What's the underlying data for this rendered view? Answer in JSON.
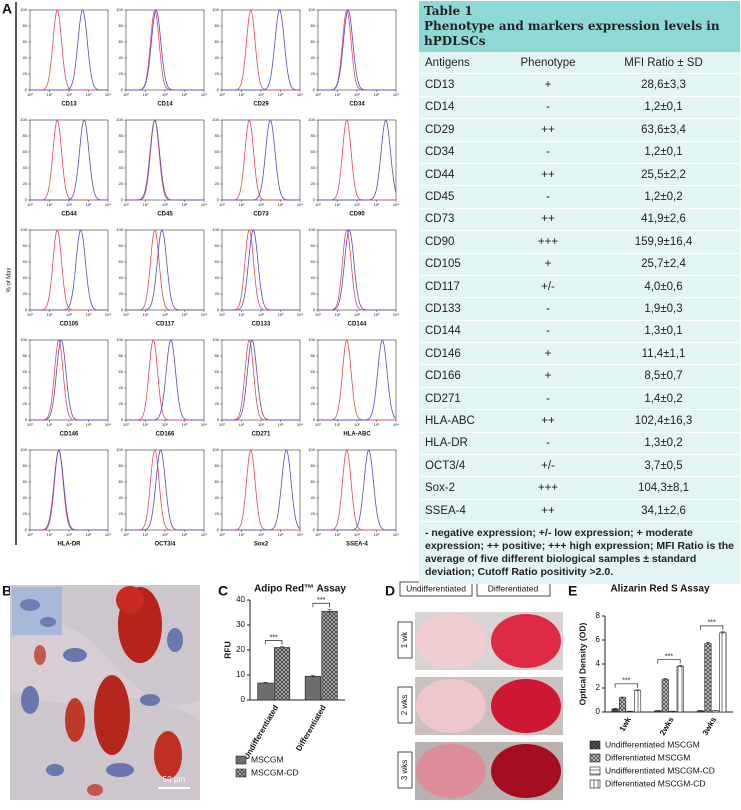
{
  "panel_labels": {
    "a": "A",
    "b": "B",
    "c": "C",
    "d": "D",
    "e": "E"
  },
  "flow": {
    "ylabel": "% of Max",
    "xlim": [
      1,
      10000
    ],
    "xticks": [
      {
        "value": 1,
        "label": "10⁰"
      },
      {
        "value": 10,
        "label": "10¹"
      },
      {
        "value": 100,
        "label": "10²"
      },
      {
        "value": 1000,
        "label": "10³"
      },
      {
        "value": 10000,
        "label": "10⁴"
      }
    ],
    "ylim": [
      0,
      100
    ],
    "yticks": [
      0,
      20,
      40,
      60,
      80,
      100
    ],
    "control_color": "#e8474f",
    "stain_color": "#4b4bd6",
    "histograms": [
      {
        "label": "CD13",
        "control_peak": 25,
        "stain_peak": 500
      },
      {
        "label": "CD14",
        "control_peak": 30,
        "stain_peak": 35
      },
      {
        "label": "CD29",
        "control_peak": 30,
        "stain_peak": 900
      },
      {
        "label": "CD34",
        "control_peak": 30,
        "stain_peak": 35
      },
      {
        "label": "CD44",
        "control_peak": 25,
        "stain_peak": 600
      },
      {
        "label": "CD45",
        "control_peak": 30,
        "stain_peak": 30
      },
      {
        "label": "CD73",
        "control_peak": 25,
        "stain_peak": 300
      },
      {
        "label": "CD90",
        "control_peak": 30,
        "stain_peak": 3000
      },
      {
        "label": "CD105",
        "control_peak": 25,
        "stain_peak": 400
      },
      {
        "label": "CD117",
        "control_peak": 30,
        "stain_peak": 70
      },
      {
        "label": "CD133",
        "control_peak": 25,
        "stain_peak": 40
      },
      {
        "label": "CD144",
        "control_peak": 30,
        "stain_peak": 40
      },
      {
        "label": "CD146",
        "control_peak": 30,
        "stain_peak": 40
      },
      {
        "label": "CD166",
        "control_peak": 25,
        "stain_peak": 200
      },
      {
        "label": "CD271",
        "control_peak": 25,
        "stain_peak": 35
      },
      {
        "label": "HLA-ABC",
        "control_peak": 30,
        "stain_peak": 2000
      },
      {
        "label": "HLA-DR",
        "control_peak": 30,
        "stain_peak": 30
      },
      {
        "label": "OCT3/4",
        "control_peak": 30,
        "stain_peak": 60
      },
      {
        "label": "Sox2",
        "control_peak": 30,
        "stain_peak": 2000
      },
      {
        "label": "SSEA-4",
        "control_peak": 30,
        "stain_peak": 400
      }
    ]
  },
  "table": {
    "title": "Table 1",
    "subtitle": "Phenotype and markers expression levels in hPDLSCs",
    "columns": [
      "Antigens",
      "Phenotype",
      "MFI Ratio ± SD"
    ],
    "rows": [
      [
        "CD13",
        "+",
        "28,6±3,3"
      ],
      [
        "CD14",
        "-",
        "1,2±0,1"
      ],
      [
        "CD29",
        "++",
        "63,6±3,4"
      ],
      [
        "CD34",
        "-",
        "1,2±0,1"
      ],
      [
        "CD44",
        "++",
        "25,5±2,2"
      ],
      [
        "CD45",
        "-",
        "1,2±0,2"
      ],
      [
        "CD73",
        "++",
        "41,9±2,6"
      ],
      [
        "CD90",
        "+++",
        "159,9±16,4"
      ],
      [
        "CD105",
        "+",
        "25,7±2,4"
      ],
      [
        "CD117",
        "+/-",
        "4,0±0,6"
      ],
      [
        "CD133",
        "-",
        "1,9±0,3"
      ],
      [
        "CD144",
        "-",
        "1,3±0,1"
      ],
      [
        "CD146",
        "+",
        "11,4±1,1"
      ],
      [
        "CD166",
        "+",
        "8,5±0,7"
      ],
      [
        "CD271",
        "-",
        "1,4±0,2"
      ],
      [
        "HLA-ABC",
        "++",
        "102,4±16,3"
      ],
      [
        "HLA-DR",
        "-",
        "1,3±0,2"
      ],
      [
        "OCT3/4",
        "+/-",
        "3,7±0,5"
      ],
      [
        "Sox-2",
        "+++",
        "104,3±8,1"
      ],
      [
        "SSEA-4",
        "++",
        "34,1±2,6"
      ]
    ],
    "footnote": "- negative expression; +/- low expression; + moderate expression; ++ positive; +++ high expression; MFI Ratio is the average of five different biological samples ± standard deviation; Cutoff Ratio positivity >2.0."
  },
  "micrograph": {
    "scale_bar": "50 µm"
  },
  "wells": {
    "columns": [
      "Undifferentiated",
      "Differentiated"
    ],
    "rows": [
      "1 wk",
      "2 wks",
      "3 wks"
    ]
  },
  "chart_data": [
    {
      "type": "bar",
      "title": "Adipo Red™ Assay",
      "ylabel": "RFU",
      "categories": [
        "Undifferentiated",
        "Differentiated"
      ],
      "series": [
        {
          "name": "MSCGM",
          "color": "#6e6e6e",
          "pattern": "solid",
          "values": [
            6.8,
            9.5
          ],
          "errors": [
            0.3,
            0.4
          ]
        },
        {
          "name": "MSCGM-CD",
          "color": "#a8a8a8",
          "pattern": "cross",
          "values": [
            21,
            35.5
          ],
          "errors": [
            0.4,
            0.8
          ]
        }
      ],
      "ylim": [
        0,
        40
      ],
      "yticks": [
        0,
        10,
        20,
        30,
        40
      ],
      "significance": [
        "***",
        "***"
      ]
    },
    {
      "type": "bar",
      "title": "Alizarin Red S Assay",
      "ylabel": "Optical Density (OD)",
      "categories": [
        "1wk",
        "2wks",
        "3wks"
      ],
      "series": [
        {
          "name": "Undifferentiated MSCGM",
          "color": "#555555",
          "pattern": "cross",
          "values": [
            0.25,
            0.1,
            0.1
          ],
          "errors": [
            0.05,
            0.02,
            0.02
          ]
        },
        {
          "name": "Differentiated MSCGM",
          "color": "#c4c4c4",
          "pattern": "cross",
          "values": [
            1.2,
            2.7,
            5.7
          ],
          "errors": [
            0.05,
            0.1,
            0.1
          ]
        },
        {
          "name": "Undifferentiated MSCGM-CD",
          "color": "#ffffff",
          "pattern": "hlines",
          "values": [
            0.05,
            0.05,
            0.1
          ],
          "errors": [
            0.02,
            0.02,
            0.02
          ]
        },
        {
          "name": "Differentiated MSCGM-CD",
          "color": "#ffffff",
          "pattern": "vlines",
          "values": [
            1.8,
            3.8,
            6.6
          ],
          "errors": [
            0.05,
            0.08,
            0.08
          ]
        }
      ],
      "ylim": [
        0,
        8
      ],
      "yticks": [
        0,
        2,
        4,
        6,
        8
      ],
      "significance": [
        "***",
        "***",
        "***"
      ]
    }
  ]
}
